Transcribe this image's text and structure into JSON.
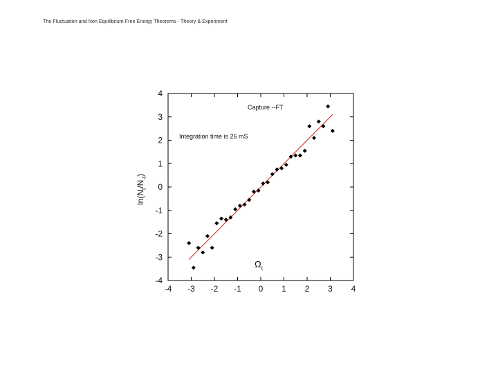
{
  "header": {
    "title": "The Fluctuation and Non Equilibrium Free Energy Theorems - Theory & Experiment"
  },
  "chart_data": {
    "type": "scatter",
    "title": "",
    "xlabel": "Ω",
    "xlabel_sub": "t",
    "ylabel_parts": {
      "a": "ln(N",
      "b": "t",
      "c": "/N",
      "d": "-t",
      "e": ")"
    },
    "xlim": [
      -4,
      4
    ],
    "ylim": [
      -4,
      4
    ],
    "xticks": [
      -4,
      -3,
      -2,
      -1,
      0,
      1,
      2,
      3,
      4
    ],
    "yticks": [
      -4,
      -3,
      -2,
      -1,
      0,
      1,
      2,
      3,
      4
    ],
    "annotations": [
      "Capture --FT",
      "Integration time is 26 mS"
    ],
    "grid": false,
    "colors": {
      "points": "#000000",
      "fit": "#cc2222",
      "axes": "#000000"
    },
    "series": [
      {
        "marker": "diamond",
        "points": [
          [
            -3.1,
            -2.4
          ],
          [
            -2.9,
            -3.45
          ],
          [
            -2.7,
            -2.6
          ],
          [
            -2.5,
            -2.8
          ],
          [
            -2.3,
            -2.1
          ],
          [
            -2.1,
            -2.6
          ],
          [
            -1.9,
            -1.55
          ],
          [
            -1.7,
            -1.35
          ],
          [
            -1.5,
            -1.4
          ],
          [
            -1.3,
            -1.3
          ],
          [
            -1.1,
            -0.95
          ],
          [
            -0.9,
            -0.8
          ],
          [
            -0.7,
            -0.75
          ],
          [
            -0.5,
            -0.55
          ],
          [
            -0.3,
            -0.2
          ],
          [
            -0.1,
            -0.15
          ],
          [
            0.1,
            0.15
          ],
          [
            0.3,
            0.2
          ],
          [
            0.5,
            0.55
          ],
          [
            0.7,
            0.75
          ],
          [
            0.9,
            0.8
          ],
          [
            1.1,
            0.95
          ],
          [
            1.3,
            1.3
          ],
          [
            1.5,
            1.35
          ],
          [
            1.7,
            1.35
          ],
          [
            1.9,
            1.55
          ],
          [
            2.1,
            2.6
          ],
          [
            2.3,
            2.1
          ],
          [
            2.5,
            2.8
          ],
          [
            2.7,
            2.6
          ],
          [
            2.9,
            3.45
          ],
          [
            3.1,
            2.4
          ]
        ]
      }
    ],
    "fit_line": {
      "slope": 1.0,
      "intercept": 0.0,
      "x_range": [
        -3.1,
        3.1
      ]
    }
  }
}
